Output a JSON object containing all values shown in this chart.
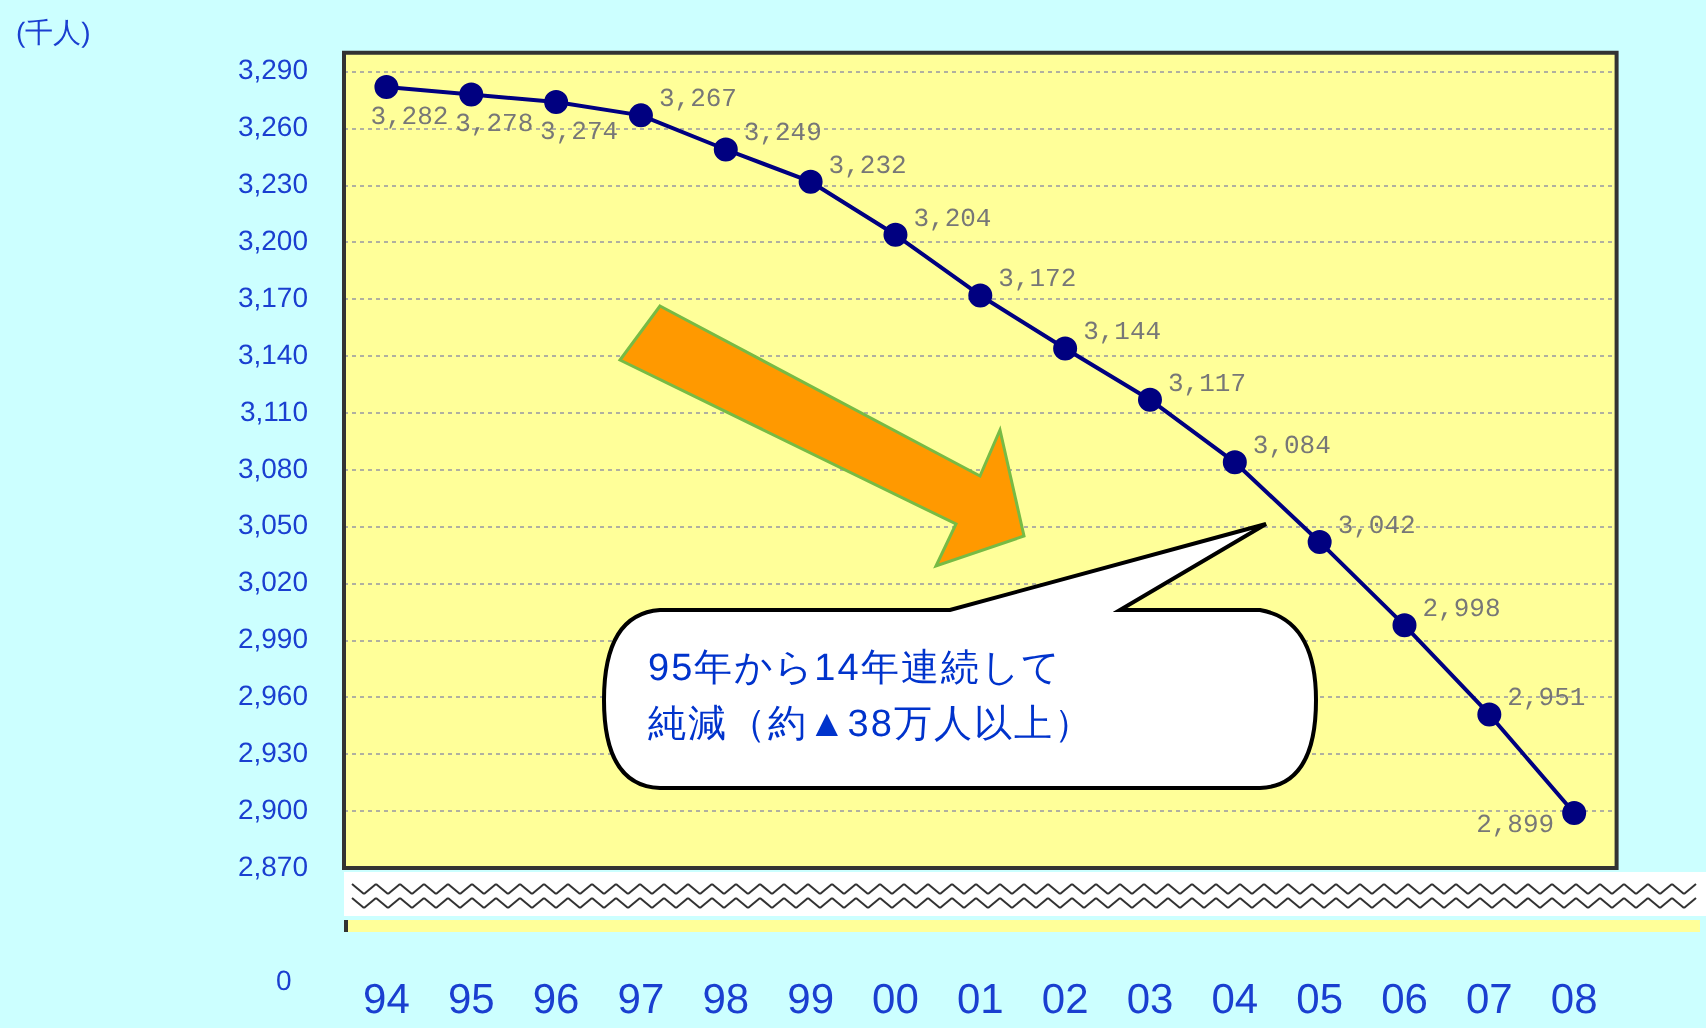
{
  "chart_data": {
    "type": "line",
    "categories": [
      "94",
      "95",
      "96",
      "97",
      "98",
      "99",
      "00",
      "01",
      "02",
      "03",
      "04",
      "05",
      "06",
      "07",
      "08"
    ],
    "series": [
      {
        "color": "#000080",
        "values": [
          3282,
          3278,
          3274,
          3267,
          3249,
          3232,
          3204,
          3172,
          3144,
          3117,
          3084,
          3042,
          2998,
          2951,
          2899
        ],
        "value_labels": [
          "3,282",
          "3,278",
          "3,274",
          "3,267",
          "3,249",
          "3,232",
          "3,204",
          "3,172",
          "3,144",
          "3,117",
          "3,084",
          "3,042",
          "2,998",
          "2,951",
          "2,899"
        ]
      }
    ],
    "ylim": [
      2870,
      3300
    ],
    "yticks": [
      {
        "value": 2870,
        "label": "2,870"
      },
      {
        "value": 2900,
        "label": "2,900"
      },
      {
        "value": 2930,
        "label": "2,930"
      },
      {
        "value": 2960,
        "label": "2,960"
      },
      {
        "value": 2990,
        "label": "2,990"
      },
      {
        "value": 3020,
        "label": "3,020"
      },
      {
        "value": 3050,
        "label": "3,050"
      },
      {
        "value": 3080,
        "label": "3,080"
      },
      {
        "value": 3110,
        "label": "3,110"
      },
      {
        "value": 3140,
        "label": "3,140"
      },
      {
        "value": 3170,
        "label": "3,170"
      },
      {
        "value": 3200,
        "label": "3,200"
      },
      {
        "value": 3230,
        "label": "3,230"
      },
      {
        "value": 3260,
        "label": "3,260"
      },
      {
        "value": 3290,
        "label": "3,290"
      }
    ],
    "grid": "y",
    "marker": "circle",
    "line_style": "solid",
    "legend": false,
    "annotations": [
      "(千人)",
      "0",
      "95年から14年連続して",
      "純減（約▲38万人以上）"
    ]
  }
}
